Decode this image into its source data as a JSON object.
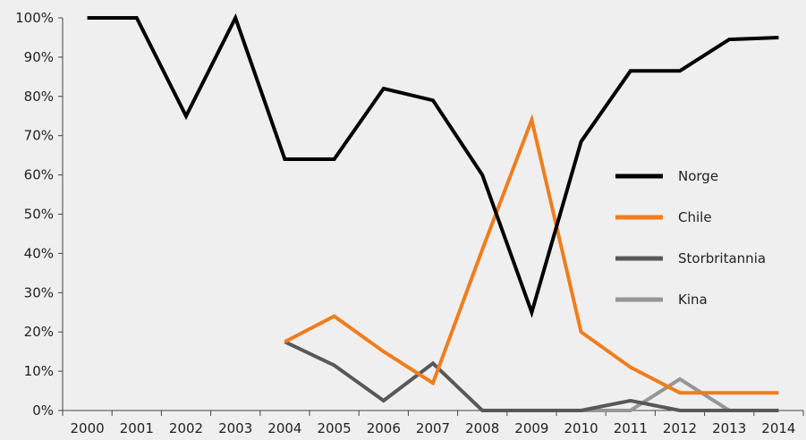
{
  "chart_data": {
    "type": "line",
    "categories": [
      "2000",
      "2001",
      "2002",
      "2003",
      "2004",
      "2005",
      "2006",
      "2007",
      "2008",
      "2009",
      "2010",
      "2011",
      "2012",
      "2013",
      "2014"
    ],
    "y_ticks": [
      "0%",
      "10%",
      "20%",
      "30%",
      "40%",
      "50%",
      "60%",
      "70%",
      "80%",
      "90%",
      "100%"
    ],
    "ylim": [
      0,
      100
    ],
    "grid": false,
    "legend_position": "right",
    "series": [
      {
        "name": "Norge",
        "color": "#000000",
        "values": [
          100,
          100,
          75,
          100,
          64,
          64,
          82,
          79,
          60,
          25,
          68.5,
          86.5,
          86.5,
          94.5,
          95
        ]
      },
      {
        "name": "Chile",
        "color": "#f07d1c",
        "values": [
          null,
          null,
          null,
          null,
          17.5,
          24,
          15,
          7,
          41,
          74,
          20,
          11,
          4.5,
          4.5,
          4.5
        ]
      },
      {
        "name": "Storbritannia",
        "color": "#58585a",
        "values": [
          null,
          null,
          null,
          null,
          17.5,
          11.5,
          2.5,
          12,
          0,
          0,
          0,
          2.5,
          0,
          0,
          0
        ]
      },
      {
        "name": "Kina",
        "color": "#969696",
        "values": [
          null,
          null,
          null,
          null,
          null,
          null,
          null,
          null,
          null,
          null,
          0,
          0,
          8,
          0,
          0
        ]
      }
    ]
  }
}
